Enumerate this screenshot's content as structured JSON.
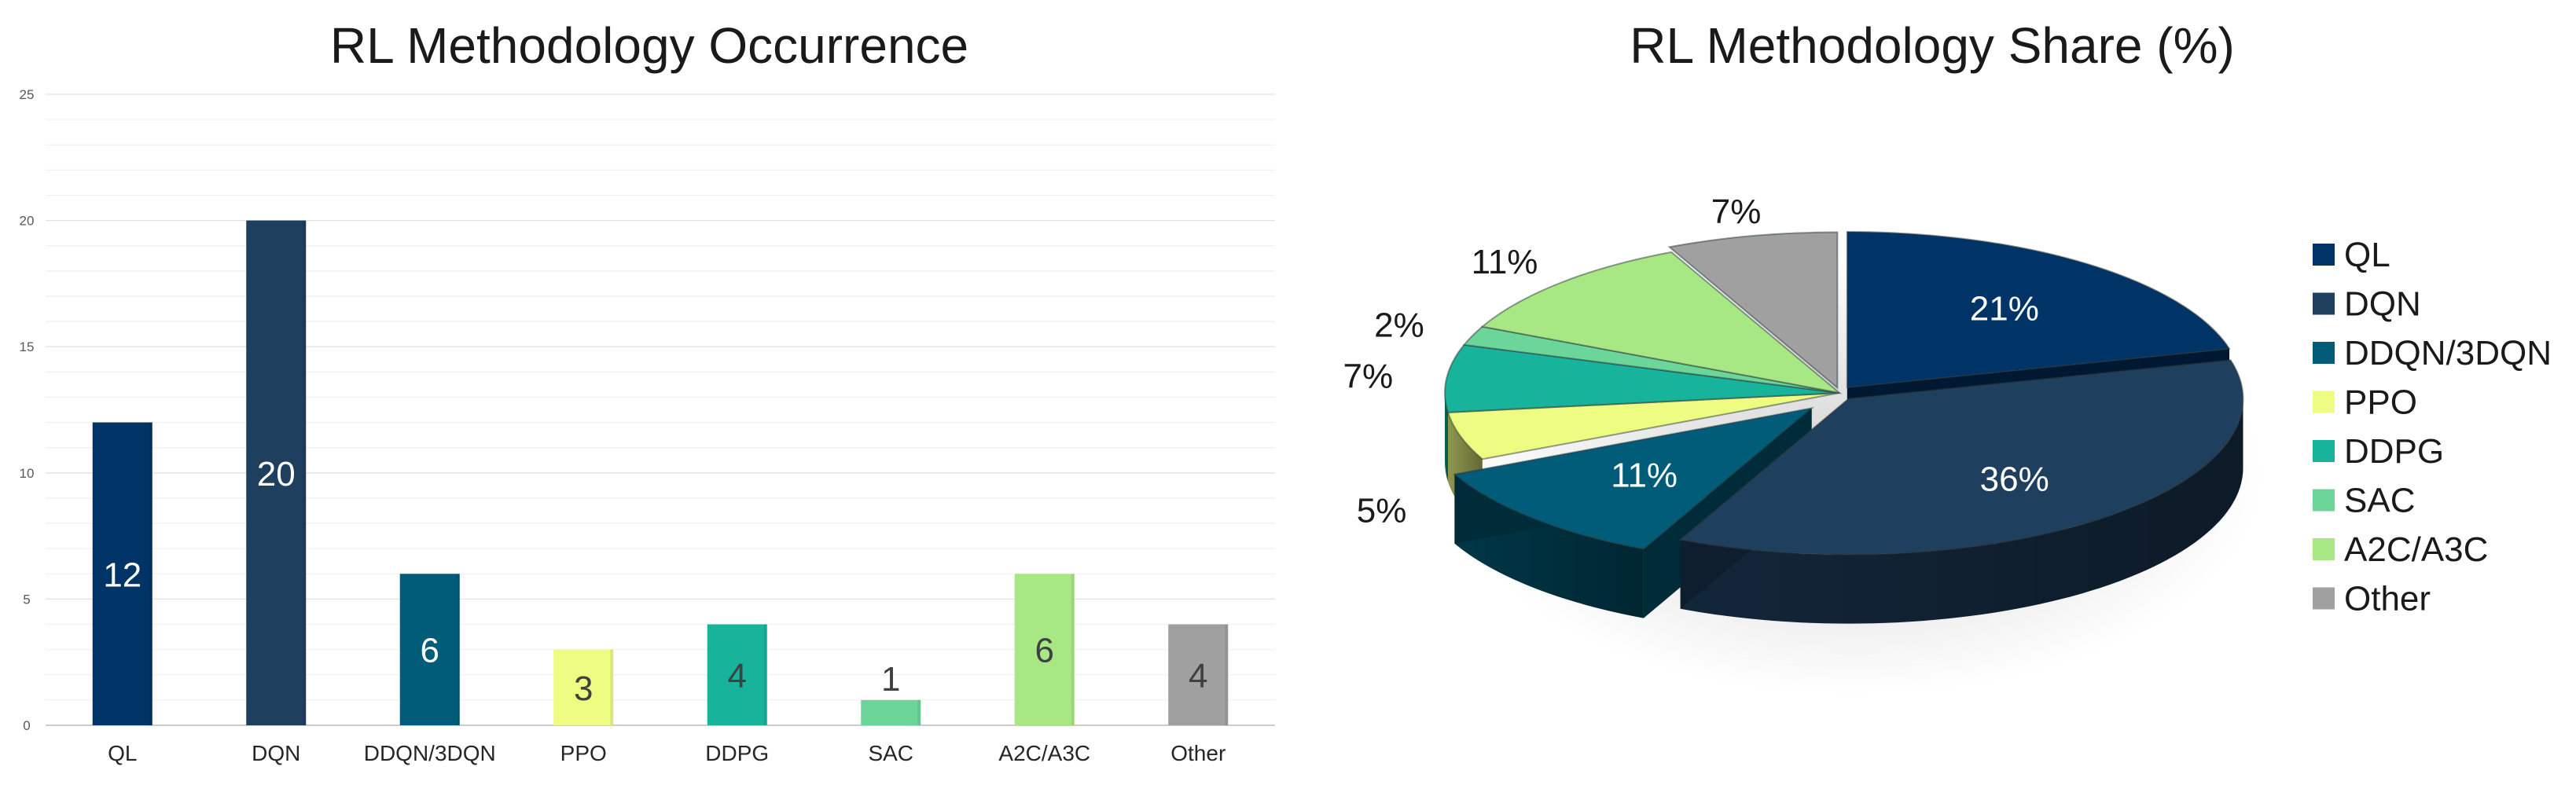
{
  "chart_data": [
    {
      "type": "bar",
      "title": "RL Methodology Occurrence",
      "categories": [
        "QL",
        "DQN",
        "DDQN/3DQN",
        "PPO",
        "DDPG",
        "SAC",
        "A2C/A3C",
        "Other"
      ],
      "values": [
        12,
        20,
        6,
        3,
        4,
        1,
        6,
        4
      ],
      "value_labels": [
        "12",
        "20",
        "6",
        "3",
        "4",
        "1",
        "6",
        "4"
      ],
      "colors": [
        "#003366",
        "#1f3f5f",
        "#005c78",
        "#eefc82",
        "#17b39a",
        "#6cd69a",
        "#a8e884",
        "#a0a0a0"
      ],
      "label_colors": [
        "#ffffff",
        "#ffffff",
        "#ffffff",
        "#404040",
        "#404040",
        "#404040",
        "#404040",
        "#404040"
      ],
      "ylim": [
        0,
        25
      ],
      "yticks": [
        0,
        5,
        10,
        15,
        20,
        25
      ],
      "ytick_labels": [
        "0",
        "5",
        "10",
        "15",
        "20",
        "25"
      ],
      "grid": true,
      "legend": "none",
      "xlabel": "",
      "ylabel": ""
    },
    {
      "type": "pie",
      "title": "RL Methodology Share (%)",
      "labels": [
        "QL",
        "DQN",
        "DDQN/3DQN",
        "PPO",
        "DDPG",
        "SAC",
        "A2C/A3C",
        "Other"
      ],
      "values": [
        21,
        36,
        11,
        5,
        7,
        2,
        11,
        7
      ],
      "value_labels": [
        "21%",
        "36%",
        "11%",
        "5%",
        "7%",
        "2%",
        "11%",
        "7%"
      ],
      "colors": [
        "#003366",
        "#1f3f5f",
        "#005c78",
        "#eefc82",
        "#17b39a",
        "#6cd69a",
        "#a8e884",
        "#a0a0a0"
      ],
      "exploded": [
        "QL",
        "DQN",
        "DDQN/3DQN",
        "Other"
      ],
      "style": "3d",
      "legend": "right"
    }
  ]
}
